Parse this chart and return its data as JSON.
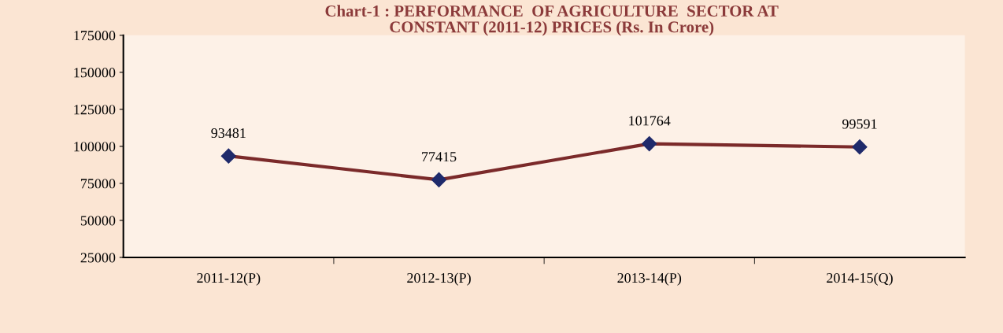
{
  "chart_data": {
    "type": "line",
    "title": "Chart-1 : PERFORMANCE  OF AGRICULTURE  SECTOR AT\nCONSTANT (2011-12) PRICES (Rs. In Crore)",
    "categories": [
      "2011-12(P)",
      "2012-13(P)",
      "2013-14(P)",
      "2014-15(Q)"
    ],
    "series": [
      {
        "color": "#7b2a2a",
        "values": [
          93481,
          77415,
          101764,
          99591
        ]
      }
    ],
    "ylim": [
      25000,
      175000
    ],
    "yticks": [
      25000,
      50000,
      75000,
      100000,
      125000,
      150000,
      175000
    ],
    "data_labels": true,
    "marker": "diamond",
    "line_style": "solid",
    "grid": false,
    "legend": false
  }
}
